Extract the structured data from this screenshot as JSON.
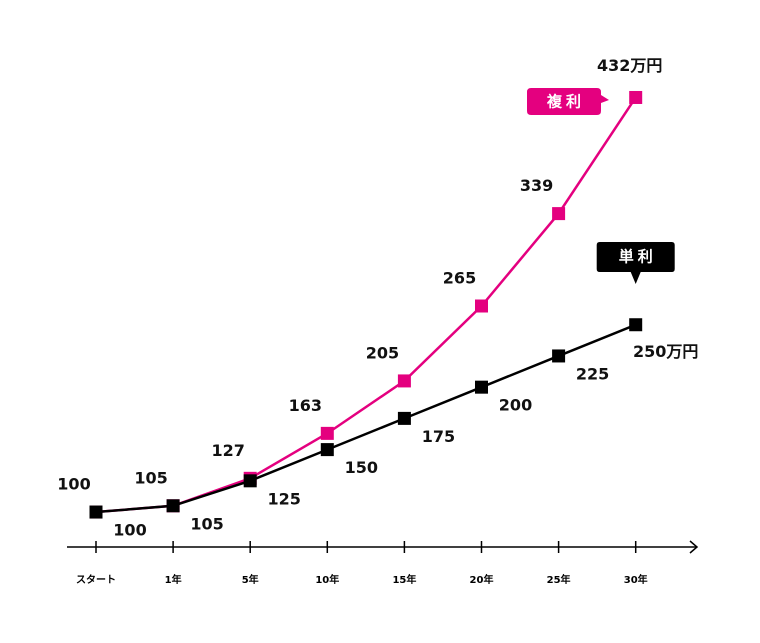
{
  "chart_data": {
    "type": "line",
    "categories": [
      "スタート",
      "1年",
      "5年",
      "10年",
      "15年",
      "20年",
      "25年",
      "30年"
    ],
    "series": [
      {
        "name": "複利",
        "color": "#e4007f",
        "values": [
          100,
          105,
          127,
          163,
          205,
          265,
          339,
          432
        ],
        "value_labels": [
          "100",
          "105",
          "127",
          "163",
          "205",
          "265",
          "339",
          "432万円"
        ]
      },
      {
        "name": "単利",
        "color": "#000000",
        "values": [
          100,
          105,
          125,
          150,
          175,
          200,
          225,
          250
        ],
        "value_labels": [
          "100",
          "105",
          "125",
          "150",
          "175",
          "200",
          "225",
          "250万円"
        ]
      }
    ],
    "ylim": [
      72,
      450
    ]
  }
}
